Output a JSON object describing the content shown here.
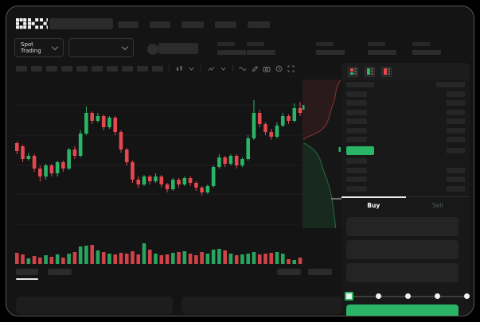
{
  "app": {
    "name": "OKX trading terminal"
  },
  "colors": {
    "background": "#000000",
    "window": "#141414",
    "green": "#2ab566",
    "red": "#e5484f",
    "placeholder": "#2b2b2b",
    "grid": "#1e1e1e",
    "depth_panel": "#161616"
  },
  "header": {
    "logo": "OKX",
    "nav_placeholder_widths": [
      26,
      26,
      28,
      27,
      28
    ],
    "search": {
      "value": "",
      "placeholder": ""
    }
  },
  "subheader": {
    "market_dropdown": {
      "label": "Spot Trading"
    },
    "pair_dropdown": {
      "label": ""
    },
    "stat_placeholder_count": 5
  },
  "toolbar": {
    "timeframe_placeholder_count": 10,
    "icon_groups": [
      {
        "icons": [
          "interval-candles",
          "chevron-down"
        ]
      },
      {
        "icons": [
          "indicators",
          "chevron-down"
        ]
      },
      {
        "icons": [
          "line-style",
          "draw",
          "camera",
          "history",
          "fullscreen"
        ]
      }
    ]
  },
  "chart_data": {
    "type": "candlestick",
    "title": "",
    "note": "values normalized 0-100 (no axis labels visible in screenshot); candle = [open, high, low, close]",
    "grid": true,
    "candles": [
      [
        57,
        58,
        50,
        52
      ],
      [
        55,
        56,
        45,
        47
      ],
      [
        47,
        51,
        46,
        49
      ],
      [
        49,
        50,
        39,
        41
      ],
      [
        41,
        43,
        33,
        36
      ],
      [
        36,
        44,
        34,
        43
      ],
      [
        43,
        44,
        36,
        38
      ],
      [
        38,
        46,
        36,
        45
      ],
      [
        45,
        46,
        39,
        41
      ],
      [
        41,
        54,
        40,
        53
      ],
      [
        53,
        55,
        47,
        49
      ],
      [
        49,
        65,
        48,
        63
      ],
      [
        63,
        80,
        62,
        76
      ],
      [
        76,
        77,
        69,
        71
      ],
      [
        71,
        76,
        70,
        74
      ],
      [
        74,
        75,
        65,
        67
      ],
      [
        67,
        74,
        66,
        73
      ],
      [
        73,
        74,
        62,
        64
      ],
      [
        64,
        65,
        51,
        53
      ],
      [
        53,
        54,
        43,
        45
      ],
      [
        45,
        46,
        32,
        34
      ],
      [
        34,
        36,
        29,
        31
      ],
      [
        31,
        37,
        30,
        36
      ],
      [
        36,
        37,
        31,
        33
      ],
      [
        33,
        38,
        32,
        36
      ],
      [
        36,
        37,
        29,
        31
      ],
      [
        31,
        32,
        26,
        28
      ],
      [
        28,
        35,
        27,
        34
      ],
      [
        34,
        35,
        29,
        31
      ],
      [
        31,
        36,
        30,
        35
      ],
      [
        35,
        36,
        30,
        32
      ],
      [
        32,
        33,
        27,
        29
      ],
      [
        29,
        30,
        24,
        26
      ],
      [
        26,
        31,
        25,
        30
      ],
      [
        30,
        43,
        29,
        42
      ],
      [
        42,
        50,
        41,
        48
      ],
      [
        48,
        49,
        42,
        44
      ],
      [
        44,
        50,
        43,
        49
      ],
      [
        49,
        50,
        41,
        43
      ],
      [
        43,
        48,
        42,
        47
      ],
      [
        47,
        62,
        46,
        60
      ],
      [
        60,
        84,
        59,
        76
      ],
      [
        76,
        78,
        67,
        69
      ],
      [
        69,
        70,
        62,
        64
      ],
      [
        64,
        66,
        59,
        61
      ],
      [
        61,
        70,
        60,
        68
      ],
      [
        68,
        76,
        67,
        74
      ],
      [
        74,
        75,
        69,
        71
      ],
      [
        71,
        82,
        70,
        79
      ],
      [
        79,
        83,
        74,
        76
      ]
    ],
    "volumes": [
      28,
      24,
      14,
      20,
      16,
      22,
      18,
      24,
      16,
      26,
      30,
      44,
      46,
      48,
      34,
      30,
      26,
      24,
      28,
      26,
      32,
      24,
      52,
      36,
      26,
      22,
      24,
      28,
      30,
      32,
      26,
      22,
      30,
      26,
      36,
      38,
      34,
      26,
      22,
      24,
      26,
      30,
      24,
      26,
      28,
      30,
      26,
      12,
      10,
      16
    ],
    "depth": {
      "note": "vertical market-depth strip at right of chart; coords are fractions of strip [x from left, y from top]",
      "asks": [
        [
          1,
          0.03
        ],
        [
          0.93,
          0.06
        ],
        [
          0.88,
          0.1
        ],
        [
          0.84,
          0.16
        ],
        [
          0.78,
          0.2
        ],
        [
          0.72,
          0.25
        ],
        [
          0.66,
          0.3
        ],
        [
          0.6,
          0.33
        ],
        [
          0.5,
          0.355
        ],
        [
          0.38,
          0.375
        ],
        [
          0.25,
          0.39
        ],
        [
          0.1,
          0.405
        ],
        [
          0.03,
          0.42
        ]
      ],
      "bids": [
        [
          0.03,
          0.44
        ],
        [
          0.15,
          0.46
        ],
        [
          0.28,
          0.48
        ],
        [
          0.38,
          0.51
        ],
        [
          0.46,
          0.55
        ],
        [
          0.52,
          0.6
        ],
        [
          0.58,
          0.64
        ],
        [
          0.64,
          0.68
        ],
        [
          0.7,
          0.73
        ],
        [
          0.76,
          0.79
        ],
        [
          0.8,
          0.86
        ],
        [
          0.84,
          0.93
        ],
        [
          0.87,
          1.0
        ]
      ]
    },
    "sub_tabs_placeholder": {
      "left_widths": [
        28,
        30
      ],
      "right_widths": [
        30,
        30
      ],
      "active_index": 0
    }
  },
  "order_book": {
    "layout_icons": [
      "book-both",
      "book-bids",
      "book-asks"
    ],
    "rows": [
      {
        "kind": "header",
        "left_w": 35,
        "right_w": 36
      },
      {
        "kind": "ask",
        "left_w": 26,
        "right_w": 23
      },
      {
        "kind": "ask",
        "left_w": 26,
        "right_w": 23
      },
      {
        "kind": "ask",
        "left_w": 26,
        "right_w": 23
      },
      {
        "kind": "ask",
        "left_w": 26,
        "right_w": 23
      },
      {
        "kind": "ask",
        "left_w": 26,
        "right_w": 23
      },
      {
        "kind": "ask",
        "left_w": 26,
        "right_w": 23
      },
      {
        "kind": "price",
        "left_w": 35,
        "right_w": 23,
        "highlight": "green"
      },
      {
        "kind": "bid",
        "left_w": 26,
        "right_w": 0
      },
      {
        "kind": "bid",
        "left_w": 26,
        "right_w": 23
      },
      {
        "kind": "bid",
        "left_w": 26,
        "right_w": 23
      },
      {
        "kind": "bid",
        "left_w": 26,
        "right_w": 23
      }
    ]
  },
  "trade_panel": {
    "tabs": [
      {
        "label": "Buy",
        "active": true
      },
      {
        "label": "Sell",
        "active": false
      }
    ],
    "field_count": 3,
    "slider": {
      "stops_percent": [
        0,
        25,
        50,
        75,
        100
      ],
      "value_percent": 0
    },
    "submit_button": {
      "label": "",
      "color": "#2ab566"
    }
  },
  "bottom": {
    "panel_count": 2
  }
}
